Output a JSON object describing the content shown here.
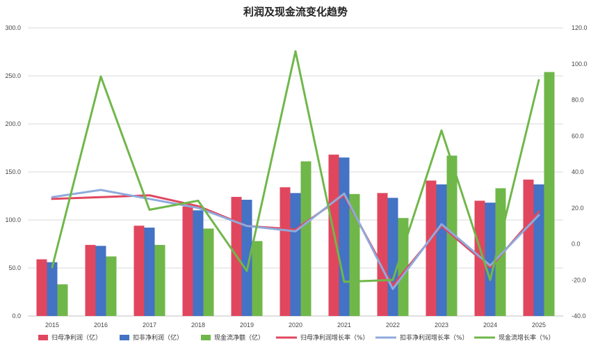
{
  "chart_data": {
    "type": "bar",
    "title": "利润及现金流变化趋势",
    "categories": [
      "2015",
      "2016",
      "2017",
      "2018",
      "2019",
      "2020",
      "2021",
      "2022",
      "2023",
      "2024",
      "2025"
    ],
    "y_left": {
      "ylim": [
        0,
        300
      ],
      "ticks": [
        "0.0",
        "50.0",
        "100.0",
        "150.0",
        "200.0",
        "250.0",
        "300.0"
      ]
    },
    "y_right": {
      "ylim": [
        -40,
        120
      ],
      "ticks": [
        "-40.0",
        "-20.0",
        "0.0",
        "20.0",
        "40.0",
        "60.0",
        "80.0",
        "100.0",
        "120.0"
      ]
    },
    "grid": true,
    "legend_position": "bottom",
    "bar_series": [
      {
        "name": "归母净利润（亿）",
        "color": "#e0475e",
        "values": [
          59,
          74,
          94,
          114,
          124,
          134,
          168,
          128,
          141,
          120,
          142
        ]
      },
      {
        "name": "扣非净利润（亿）",
        "color": "#4472c4",
        "values": [
          56,
          73,
          92,
          110,
          121,
          128,
          165,
          123,
          137,
          118,
          137
        ]
      },
      {
        "name": "现金流净额（亿）",
        "color": "#70b74a",
        "values": [
          33,
          62,
          74,
          91,
          78,
          161,
          127,
          102,
          167,
          133,
          254
        ]
      }
    ],
    "line_series": [
      {
        "name": "归母净利润增长率（%）",
        "color": "#e0475e",
        "values": [
          25,
          26,
          27,
          21,
          10,
          8,
          27,
          -23,
          10,
          -13,
          18
        ]
      },
      {
        "name": "扣非净利润增长率（%）",
        "color": "#8faadc",
        "values": [
          26,
          30,
          25,
          20,
          10,
          7,
          28,
          -25,
          11,
          -12,
          16
        ]
      },
      {
        "name": "现金流增长率（%）",
        "color": "#70b74a",
        "values": [
          -13,
          93,
          19,
          24,
          -15,
          107,
          -21,
          -20,
          63,
          -20,
          91
        ]
      }
    ]
  }
}
